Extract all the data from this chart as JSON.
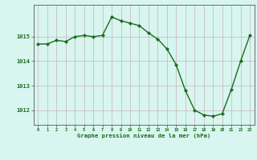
{
  "x": [
    0,
    1,
    2,
    3,
    4,
    5,
    6,
    7,
    8,
    9,
    10,
    11,
    12,
    13,
    14,
    15,
    16,
    17,
    18,
    19,
    20,
    21,
    22,
    23
  ],
  "y": [
    1014.7,
    1014.7,
    1014.85,
    1014.8,
    1015.0,
    1015.05,
    1015.0,
    1015.05,
    1015.8,
    1015.65,
    1015.55,
    1015.45,
    1015.15,
    1014.9,
    1014.5,
    1013.85,
    1012.8,
    1012.0,
    1011.8,
    1011.75,
    1011.85,
    1012.85,
    1014.0,
    1015.05
  ],
  "line_color": "#1a6b1a",
  "marker_color": "#1a6b1a",
  "bg_color": "#d8f5f0",
  "grid_color": "#c8b4b4",
  "text_color": "#1a6b1a",
  "xlabel": "Graphe pression niveau de la mer (hPa)",
  "yticks": [
    1012,
    1013,
    1014,
    1015
  ],
  "xlim": [
    -0.5,
    23.5
  ],
  "ylim": [
    1011.4,
    1016.3
  ],
  "figsize": [
    3.2,
    2.0
  ],
  "dpi": 100
}
